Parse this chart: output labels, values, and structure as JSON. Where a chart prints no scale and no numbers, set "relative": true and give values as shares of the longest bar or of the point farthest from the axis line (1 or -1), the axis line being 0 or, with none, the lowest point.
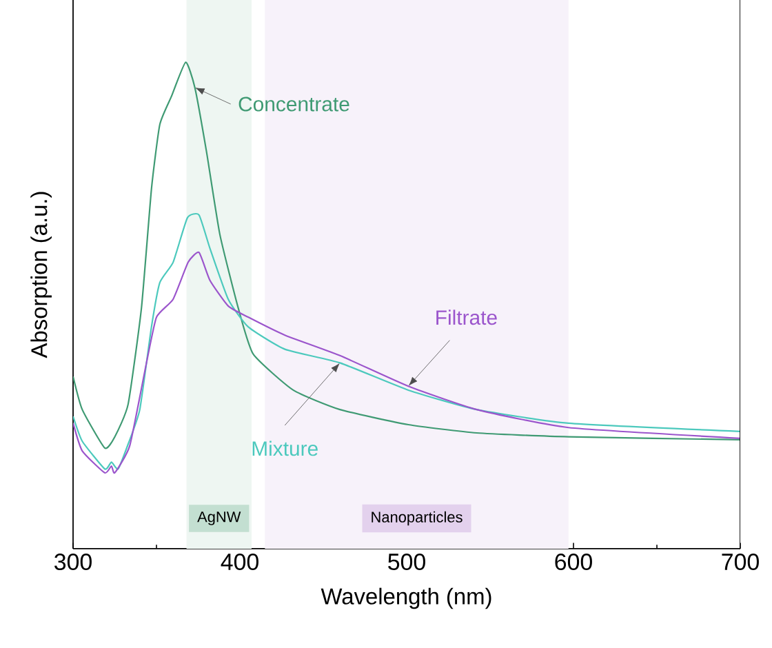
{
  "chart_data": {
    "type": "line",
    "relative": true,
    "xlabel": "Wavelength (nm)",
    "ylabel": "Absorption (a.u.)",
    "xlim": [
      300,
      700
    ],
    "xticks": [
      300,
      400,
      500,
      600,
      700
    ],
    "grid": false,
    "legend": false,
    "marker": "none",
    "line_style": "solid",
    "series": [
      {
        "name": "Concentrate",
        "color": "#3f9a73",
        "x": [
          300,
          305.5,
          319,
          325,
          333,
          341,
          347,
          352,
          359,
          367.5,
          373,
          380,
          388,
          399,
          408,
          432,
          460,
          501,
          542,
          597,
          700
        ],
        "values": [
          0.354,
          0.286,
          0.207,
          0.23,
          0.297,
          0.495,
          0.74,
          0.872,
          0.93,
          1.0,
          0.948,
          0.816,
          0.646,
          0.495,
          0.4,
          0.326,
          0.286,
          0.255,
          0.238,
          0.23,
          0.224
        ]
      },
      {
        "name": "Mixture",
        "color": "#4cc9bd",
        "x": [
          300,
          305.5,
          319,
          323,
          327,
          333,
          340,
          347,
          352,
          360,
          368.5,
          375.5,
          382,
          393,
          405,
          427,
          460,
          501,
          542,
          597,
          700
        ],
        "values": [
          0.272,
          0.221,
          0.164,
          0.178,
          0.164,
          0.215,
          0.286,
          0.456,
          0.547,
          0.589,
          0.68,
          0.686,
          0.618,
          0.513,
          0.456,
          0.41,
          0.382,
          0.326,
          0.286,
          0.258,
          0.241
        ]
      },
      {
        "name": "Filtrate",
        "color": "#9b55cc",
        "x": [
          300,
          305.5,
          319,
          323,
          325,
          334,
          344,
          350,
          360,
          369,
          375.5,
          382,
          393,
          405,
          427,
          460,
          501,
          542,
          597,
          700
        ],
        "values": [
          0.258,
          0.201,
          0.156,
          0.17,
          0.156,
          0.212,
          0.382,
          0.476,
          0.513,
          0.589,
          0.609,
          0.552,
          0.499,
          0.476,
          0.439,
          0.397,
          0.334,
          0.286,
          0.249,
          0.227
        ]
      }
    ],
    "bands": [
      {
        "axis": "x",
        "from": 368,
        "to": 407,
        "label": "AgNW",
        "color": "#eef6f2"
      },
      {
        "axis": "x",
        "from": 415,
        "to": 597,
        "label": "Nanoparticles",
        "color": "#f7f2fa"
      }
    ]
  }
}
